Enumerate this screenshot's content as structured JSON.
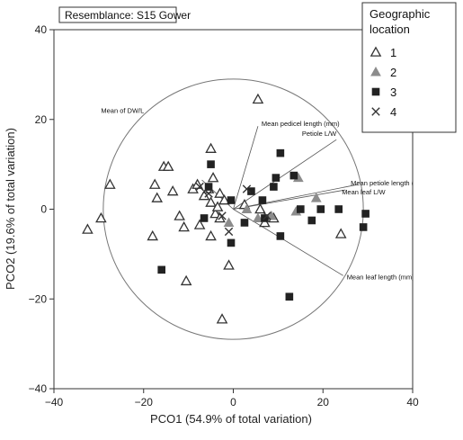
{
  "chart_data": {
    "type": "scatter",
    "annotation": "Resemblance: S15 Gower",
    "xlabel": "PCO1 (54.9% of total variation)",
    "ylabel": "PCO2 (19.6% of total variation)",
    "xlim": [
      -40,
      40
    ],
    "ylim": [
      -40,
      40
    ],
    "xticks": [
      "−40",
      "−20",
      "0",
      "20",
      "40"
    ],
    "yticks": [
      "40",
      "20",
      "0",
      "−20",
      "−40"
    ],
    "xtick_values": [
      -40,
      -20,
      0,
      20,
      40
    ],
    "ytick_values": [
      40,
      20,
      0,
      -20,
      -40
    ],
    "grid": false,
    "correlation_circle": {
      "center": [
        0,
        0
      ],
      "radius": 29
    },
    "legend": {
      "title_lines": [
        "Geographic",
        "location"
      ],
      "placement": "top-right",
      "entries": [
        {
          "label": "1",
          "marker": "open-triangle",
          "color": "#333333"
        },
        {
          "label": "2",
          "marker": "filled-triangle",
          "color": "#8c8c8c"
        },
        {
          "label": "3",
          "marker": "filled-square",
          "color": "#222222"
        },
        {
          "label": "4",
          "marker": "cross",
          "color": "#333333"
        }
      ]
    },
    "vectors": [
      {
        "label": "Mean of DW/L",
        "end": [
          -7,
          6.5
        ]
      },
      {
        "label": "Mean pedicel length (mm)",
        "end": [
          5.5,
          18.5
        ]
      },
      {
        "label": "Petiole L/W",
        "end": [
          23,
          15.5
        ]
      },
      {
        "label": "Mean petiole length (mm)",
        "end": [
          27.8,
          5.5
        ]
      },
      {
        "label": "Mean leaf L/W",
        "end": [
          25,
          4.3
        ]
      },
      {
        "label": "Mean leaf length (mm)",
        "end": [
          24.5,
          -14.8
        ]
      }
    ],
    "series": [
      {
        "name": "1",
        "marker": "open-triangle",
        "points": [
          [
            -32.5,
            -4.5
          ],
          [
            -29.5,
            -2
          ],
          [
            -27.5,
            5.5
          ],
          [
            -18,
            -6
          ],
          [
            -17.5,
            5.5
          ],
          [
            -17,
            2.5
          ],
          [
            -15.5,
            9.5
          ],
          [
            -14.5,
            9.5
          ],
          [
            -13.5,
            4
          ],
          [
            -12,
            -1.5
          ],
          [
            -11,
            -4
          ],
          [
            -10.5,
            -16
          ],
          [
            -9,
            4.5
          ],
          [
            -8,
            5.5
          ],
          [
            -7.5,
            -3.5
          ],
          [
            -6.5,
            3
          ],
          [
            -5.5,
            4.5
          ],
          [
            -5,
            1.5
          ],
          [
            -5,
            -6
          ],
          [
            -5,
            13.5
          ],
          [
            -4.5,
            7
          ],
          [
            -4,
            -1
          ],
          [
            -3.5,
            0.5
          ],
          [
            -3,
            3.5
          ],
          [
            -3,
            -2
          ],
          [
            -2.5,
            -24.5
          ],
          [
            -2,
            2
          ],
          [
            -1,
            -12.5
          ],
          [
            2.5,
            1
          ],
          [
            5.5,
            24.5
          ],
          [
            9,
            -2
          ],
          [
            7,
            -3
          ],
          [
            6,
            0
          ],
          [
            24,
            -5.5
          ]
        ]
      },
      {
        "name": "2",
        "marker": "filled-triangle",
        "points": [
          [
            -1,
            -3
          ],
          [
            3,
            0
          ],
          [
            5.5,
            -2
          ],
          [
            8.5,
            -1.5
          ],
          [
            14.5,
            7
          ],
          [
            14,
            -0.5
          ],
          [
            18.5,
            2.5
          ]
        ]
      },
      {
        "name": "3",
        "marker": "filled-square",
        "points": [
          [
            -16,
            -13.5
          ],
          [
            -6.5,
            -2
          ],
          [
            -5,
            10
          ],
          [
            -5.5,
            5
          ],
          [
            -0.5,
            2
          ],
          [
            -0.5,
            -7.5
          ],
          [
            2.5,
            -3
          ],
          [
            4,
            4
          ],
          [
            6.5,
            2
          ],
          [
            7,
            -2
          ],
          [
            9,
            5
          ],
          [
            9.5,
            7
          ],
          [
            10.5,
            -6
          ],
          [
            10.5,
            12.5
          ],
          [
            12.5,
            -19.5
          ],
          [
            13.5,
            7.5
          ],
          [
            15,
            0
          ],
          [
            17.5,
            -2.5
          ],
          [
            19.5,
            0
          ],
          [
            23.5,
            0
          ],
          [
            29,
            -4
          ],
          [
            29.5,
            -1
          ]
        ]
      },
      {
        "name": "4",
        "marker": "cross",
        "points": [
          [
            -7.5,
            5
          ],
          [
            -5.5,
            3.5
          ],
          [
            -2.5,
            -1.5
          ],
          [
            -1,
            -5
          ],
          [
            3,
            4.5
          ],
          [
            7.5,
            -1.5
          ]
        ]
      }
    ]
  }
}
